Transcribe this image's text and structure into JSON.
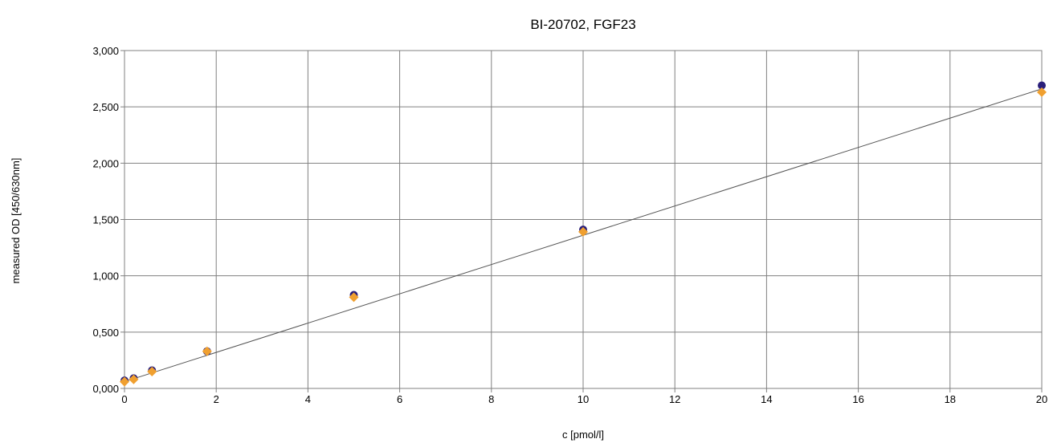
{
  "chart_data": {
    "type": "scatter",
    "title": "BI-20702, FGF23",
    "xlabel": "c [pmol/l]",
    "ylabel": "measured OD [450/630nm]",
    "xlim": [
      0,
      20
    ],
    "ylim": [
      0,
      3
    ],
    "x_ticks": [
      0,
      2,
      4,
      6,
      8,
      10,
      12,
      14,
      16,
      18,
      20
    ],
    "x_tick_labels": [
      "0",
      "2",
      "4",
      "6",
      "8",
      "10",
      "12",
      "14",
      "16",
      "18",
      "20"
    ],
    "y_ticks": [
      0,
      0.5,
      1,
      1.5,
      2,
      2.5,
      3
    ],
    "y_tick_labels": [
      "0,000",
      "0,500",
      "1,000",
      "1,500",
      "2,000",
      "2,500",
      "3,000"
    ],
    "grid": true,
    "legend": "none",
    "series": [
      {
        "marker": "circle",
        "color": "#2a1f7a",
        "points": [
          {
            "x": 0,
            "y": 0.07
          },
          {
            "x": 0.2,
            "y": 0.09
          },
          {
            "x": 0.6,
            "y": 0.16
          },
          {
            "x": 1.8,
            "y": 0.33
          },
          {
            "x": 5,
            "y": 0.83
          },
          {
            "x": 10,
            "y": 1.41
          },
          {
            "x": 20,
            "y": 2.69
          }
        ]
      },
      {
        "marker": "diamond",
        "color": "#f0a030",
        "points": [
          {
            "x": 0,
            "y": 0.06
          },
          {
            "x": 0.2,
            "y": 0.08
          },
          {
            "x": 0.6,
            "y": 0.15
          },
          {
            "x": 1.8,
            "y": 0.33
          },
          {
            "x": 5,
            "y": 0.81
          },
          {
            "x": 10,
            "y": 1.39
          },
          {
            "x": 20,
            "y": 2.63
          }
        ]
      }
    ],
    "fit_line": {
      "type": "linear",
      "color": "#555555",
      "points": [
        {
          "x": 0,
          "y": 0.06
        },
        {
          "x": 20,
          "y": 2.66
        }
      ]
    }
  }
}
